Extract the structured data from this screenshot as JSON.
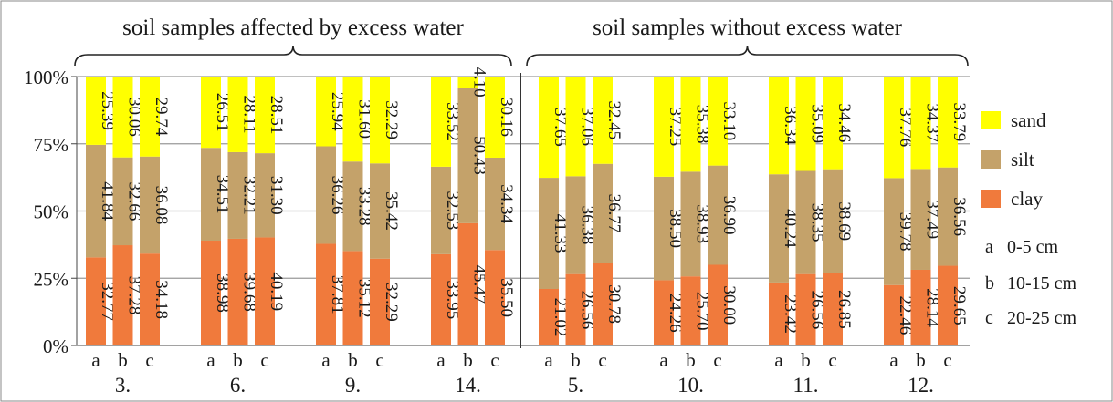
{
  "chart_data": {
    "type": "bar",
    "stacked": true,
    "percent_scale": true,
    "y_ticks": [
      "0%",
      "25%",
      "50%",
      "75%",
      "100%"
    ],
    "ylim": [
      0,
      100
    ],
    "grid": true,
    "legend_position": "right",
    "series": [
      {
        "name": "clay",
        "color": "#f07a3c"
      },
      {
        "name": "silt",
        "color": "#c4a26a"
      },
      {
        "name": "sand",
        "color": "#ffff00"
      }
    ],
    "depth_legend": [
      {
        "letter": "a",
        "text": "0-5 cm"
      },
      {
        "letter": "b",
        "text": "10-15 cm"
      },
      {
        "letter": "c",
        "text": "20-25 cm"
      }
    ],
    "groups": [
      {
        "header": "soil samples affected by excess water",
        "sites": [
          "3.",
          "6.",
          "9.",
          "14."
        ]
      },
      {
        "header": "soil samples without excess water",
        "sites": [
          "5.",
          "10.",
          "11.",
          "12."
        ]
      }
    ],
    "sites": [
      {
        "label": "3.",
        "bars": [
          {
            "letter": "a",
            "clay": 32.77,
            "clay_label": "32.77",
            "silt": 41.84,
            "silt_label": "41.84",
            "sand": 25.39,
            "sand_label": "25.39"
          },
          {
            "letter": "b",
            "clay": 37.28,
            "clay_label": "37.28",
            "silt": 32.66,
            "silt_label": "32.66",
            "sand": 30.06,
            "sand_label": "30.06"
          },
          {
            "letter": "c",
            "clay": 34.18,
            "clay_label": "34.18",
            "silt": 36.08,
            "silt_label": "36.08",
            "sand": 29.74,
            "sand_label": "29.74"
          }
        ]
      },
      {
        "label": "6.",
        "bars": [
          {
            "letter": "a",
            "clay": 38.98,
            "clay_label": "38.98",
            "silt": 34.51,
            "silt_label": "34.51",
            "sand": 26.51,
            "sand_label": "26.51"
          },
          {
            "letter": "b",
            "clay": 39.68,
            "clay_label": "39.68",
            "silt": 32.21,
            "silt_label": "32.21",
            "sand": 28.11,
            "sand_label": "28.11"
          },
          {
            "letter": "c",
            "clay": 40.19,
            "clay_label": "40.19",
            "silt": 31.3,
            "silt_label": "31.30",
            "sand": 28.51,
            "sand_label": "28.51"
          }
        ]
      },
      {
        "label": "9.",
        "bars": [
          {
            "letter": "a",
            "clay": 37.81,
            "clay_label": "37.81",
            "silt": 36.26,
            "silt_label": "36.26",
            "sand": 25.94,
            "sand_label": "25.94"
          },
          {
            "letter": "b",
            "clay": 35.12,
            "clay_label": "35.12",
            "silt": 33.28,
            "silt_label": "33.28",
            "sand": 31.6,
            "sand_label": "31.60"
          },
          {
            "letter": "c",
            "clay": 32.29,
            "clay_label": "32.29",
            "silt": 35.42,
            "silt_label": "35.42",
            "sand": 32.29,
            "sand_label": "32.29"
          }
        ]
      },
      {
        "label": "14.",
        "bars": [
          {
            "letter": "a",
            "clay": 33.95,
            "clay_label": "33.95",
            "silt": 32.53,
            "silt_label": "32.53",
            "sand": 33.52,
            "sand_label": "33.52"
          },
          {
            "letter": "b",
            "clay": 45.47,
            "clay_label": "45.47",
            "silt": 50.43,
            "silt_label": "50.43",
            "sand": 4.1,
            "sand_label": "4.10"
          },
          {
            "letter": "c",
            "clay": 35.5,
            "clay_label": "35.50",
            "silt": 34.34,
            "silt_label": "34.34",
            "sand": 30.16,
            "sand_label": "30.16"
          }
        ]
      },
      {
        "label": "5.",
        "bars": [
          {
            "letter": "a",
            "clay": 21.02,
            "clay_label": "21.02",
            "silt": 41.33,
            "silt_label": "41.33",
            "sand": 37.65,
            "sand_label": "37.65"
          },
          {
            "letter": "b",
            "clay": 26.56,
            "clay_label": "26.56",
            "silt": 36.38,
            "silt_label": "36.38",
            "sand": 37.06,
            "sand_label": "37.06"
          },
          {
            "letter": "c",
            "clay": 30.78,
            "clay_label": "30.78",
            "silt": 36.77,
            "silt_label": "36.77",
            "sand": 32.45,
            "sand_label": "32.45"
          }
        ]
      },
      {
        "label": "10.",
        "bars": [
          {
            "letter": "a",
            "clay": 24.26,
            "clay_label": "24.26",
            "silt": 38.5,
            "silt_label": "38.50",
            "sand": 37.25,
            "sand_label": "37.25"
          },
          {
            "letter": "b",
            "clay": 25.7,
            "clay_label": "25.70",
            "silt": 38.93,
            "silt_label": "38.93",
            "sand": 35.38,
            "sand_label": "35.38"
          },
          {
            "letter": "c",
            "clay": 30.0,
            "clay_label": "30.00",
            "silt": 36.9,
            "silt_label": "36.90",
            "sand": 33.1,
            "sand_label": "33.10"
          }
        ]
      },
      {
        "label": "11.",
        "bars": [
          {
            "letter": "a",
            "clay": 23.42,
            "clay_label": "23.42",
            "silt": 40.24,
            "silt_label": "40.24",
            "sand": 36.34,
            "sand_label": "36.34"
          },
          {
            "letter": "b",
            "clay": 26.56,
            "clay_label": "26.56",
            "silt": 38.35,
            "silt_label": "38.35",
            "sand": 35.09,
            "sand_label": "35.09"
          },
          {
            "letter": "c",
            "clay": 26.85,
            "clay_label": "26.85",
            "silt": 38.69,
            "silt_label": "38.69",
            "sand": 34.46,
            "sand_label": "34.46"
          }
        ]
      },
      {
        "label": "12.",
        "bars": [
          {
            "letter": "a",
            "clay": 22.46,
            "clay_label": "22.46",
            "silt": 39.78,
            "silt_label": "39.78",
            "sand": 37.76,
            "sand_label": "37.76"
          },
          {
            "letter": "b",
            "clay": 28.14,
            "clay_label": "28.14",
            "silt": 37.49,
            "silt_label": "37.49",
            "sand": 34.37,
            "sand_label": "34.37"
          },
          {
            "letter": "c",
            "clay": 29.65,
            "clay_label": "29.65",
            "silt": 36.56,
            "silt_label": "36.56",
            "sand": 33.79,
            "sand_label": "33.79"
          }
        ]
      }
    ]
  }
}
